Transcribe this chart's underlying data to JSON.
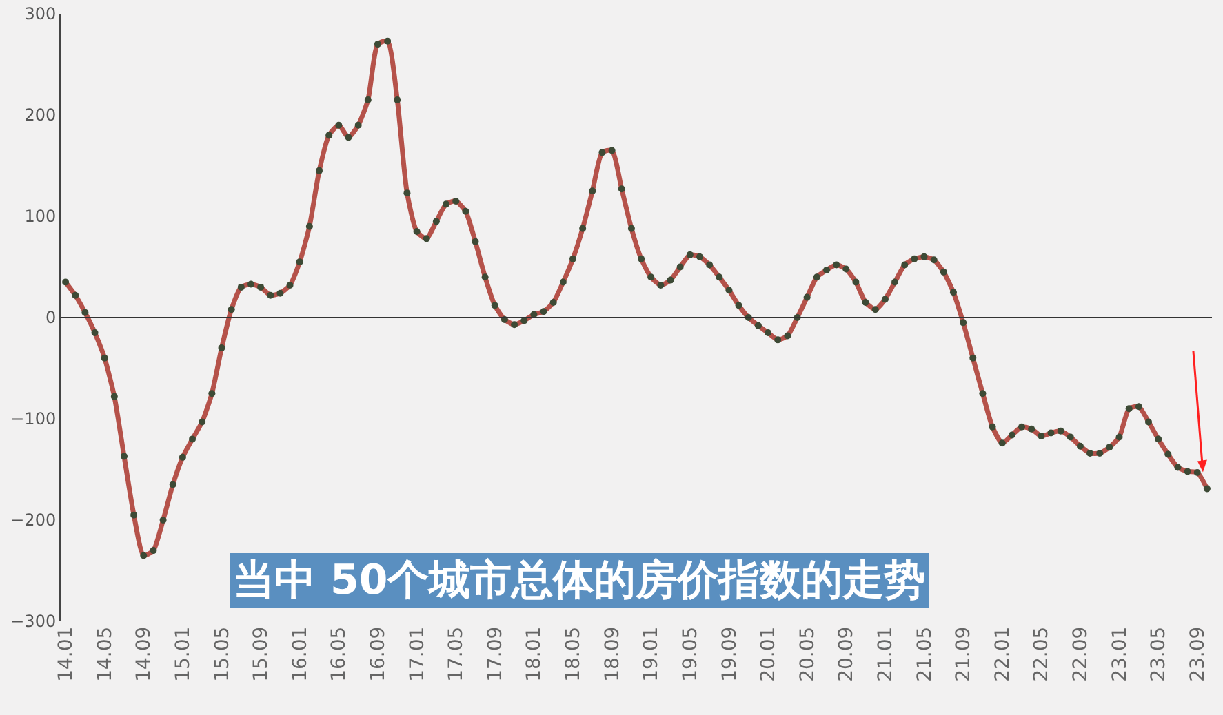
{
  "chart_data": {
    "type": "line",
    "annotations": [
      "当中 50个城市总体的房价指数的走势"
    ],
    "categories": [
      "14.01",
      null,
      null,
      null,
      "14.05",
      null,
      null,
      null,
      "14.09",
      null,
      null,
      null,
      "15.01",
      null,
      null,
      null,
      "15.05",
      null,
      null,
      null,
      "15.09",
      null,
      null,
      null,
      "16.01",
      null,
      null,
      null,
      "16.05",
      null,
      null,
      null,
      "16.09",
      null,
      null,
      null,
      "17.01",
      null,
      null,
      null,
      "17.05",
      null,
      null,
      null,
      "17.09",
      null,
      null,
      null,
      "18.01",
      null,
      null,
      null,
      "18.05",
      null,
      null,
      null,
      "18.09",
      null,
      null,
      null,
      "19.01",
      null,
      null,
      null,
      "19.05",
      null,
      null,
      null,
      "19.09",
      null,
      null,
      null,
      "20.01",
      null,
      null,
      null,
      "20.05",
      null,
      null,
      null,
      "20.09",
      null,
      null,
      null,
      "21.01",
      null,
      null,
      null,
      "21.05",
      null,
      null,
      null,
      "21.09",
      null,
      null,
      null,
      "22.01",
      null,
      null,
      null,
      "22.05",
      null,
      null,
      null,
      "22.09",
      null,
      null,
      null,
      "23.01",
      null,
      null,
      null,
      "23.05",
      null,
      null,
      null,
      "23.09",
      null
    ],
    "series": [
      {
        "color": "#b5524a",
        "values": [
          35,
          22,
          5,
          -15,
          -40,
          -78,
          -137,
          -195,
          -235,
          -230,
          -200,
          -165,
          -138,
          -120,
          -103,
          -75,
          -30,
          8,
          30,
          33,
          30,
          22,
          24,
          32,
          55,
          90,
          145,
          180,
          190,
          178,
          190,
          215,
          270,
          273,
          215,
          123,
          85,
          78,
          95,
          112,
          115,
          105,
          75,
          40,
          12,
          -2,
          -7,
          -3,
          3,
          6,
          15,
          35,
          58,
          88,
          125,
          163,
          165,
          127,
          88,
          58,
          40,
          32,
          37,
          50,
          62,
          60,
          52,
          40,
          27,
          12,
          0,
          -8,
          -15,
          -22,
          -18,
          0,
          20,
          40,
          47,
          52,
          48,
          35,
          15,
          8,
          18,
          35,
          52,
          58,
          60,
          57,
          45,
          25,
          -5,
          -40,
          -75,
          -108,
          -124,
          -116,
          -108,
          -110,
          -117,
          -114,
          -112,
          -118,
          -127,
          -134,
          -134,
          -128,
          -118,
          -90,
          -88,
          -103,
          -120,
          -135,
          -148,
          -152,
          -153,
          -169
        ]
      }
    ],
    "ylim": [
      -300,
      300
    ],
    "yticks": [
      {
        "value": -300,
        "label": "−300"
      },
      {
        "value": -200,
        "label": "−200"
      },
      {
        "value": -100,
        "label": "−100"
      },
      0,
      100,
      200,
      300
    ],
    "ref_lines": [
      {
        "axis": "y",
        "value": 0,
        "color": "#333333"
      }
    ],
    "grid": false,
    "marker": "circle",
    "line_style": "solid"
  }
}
